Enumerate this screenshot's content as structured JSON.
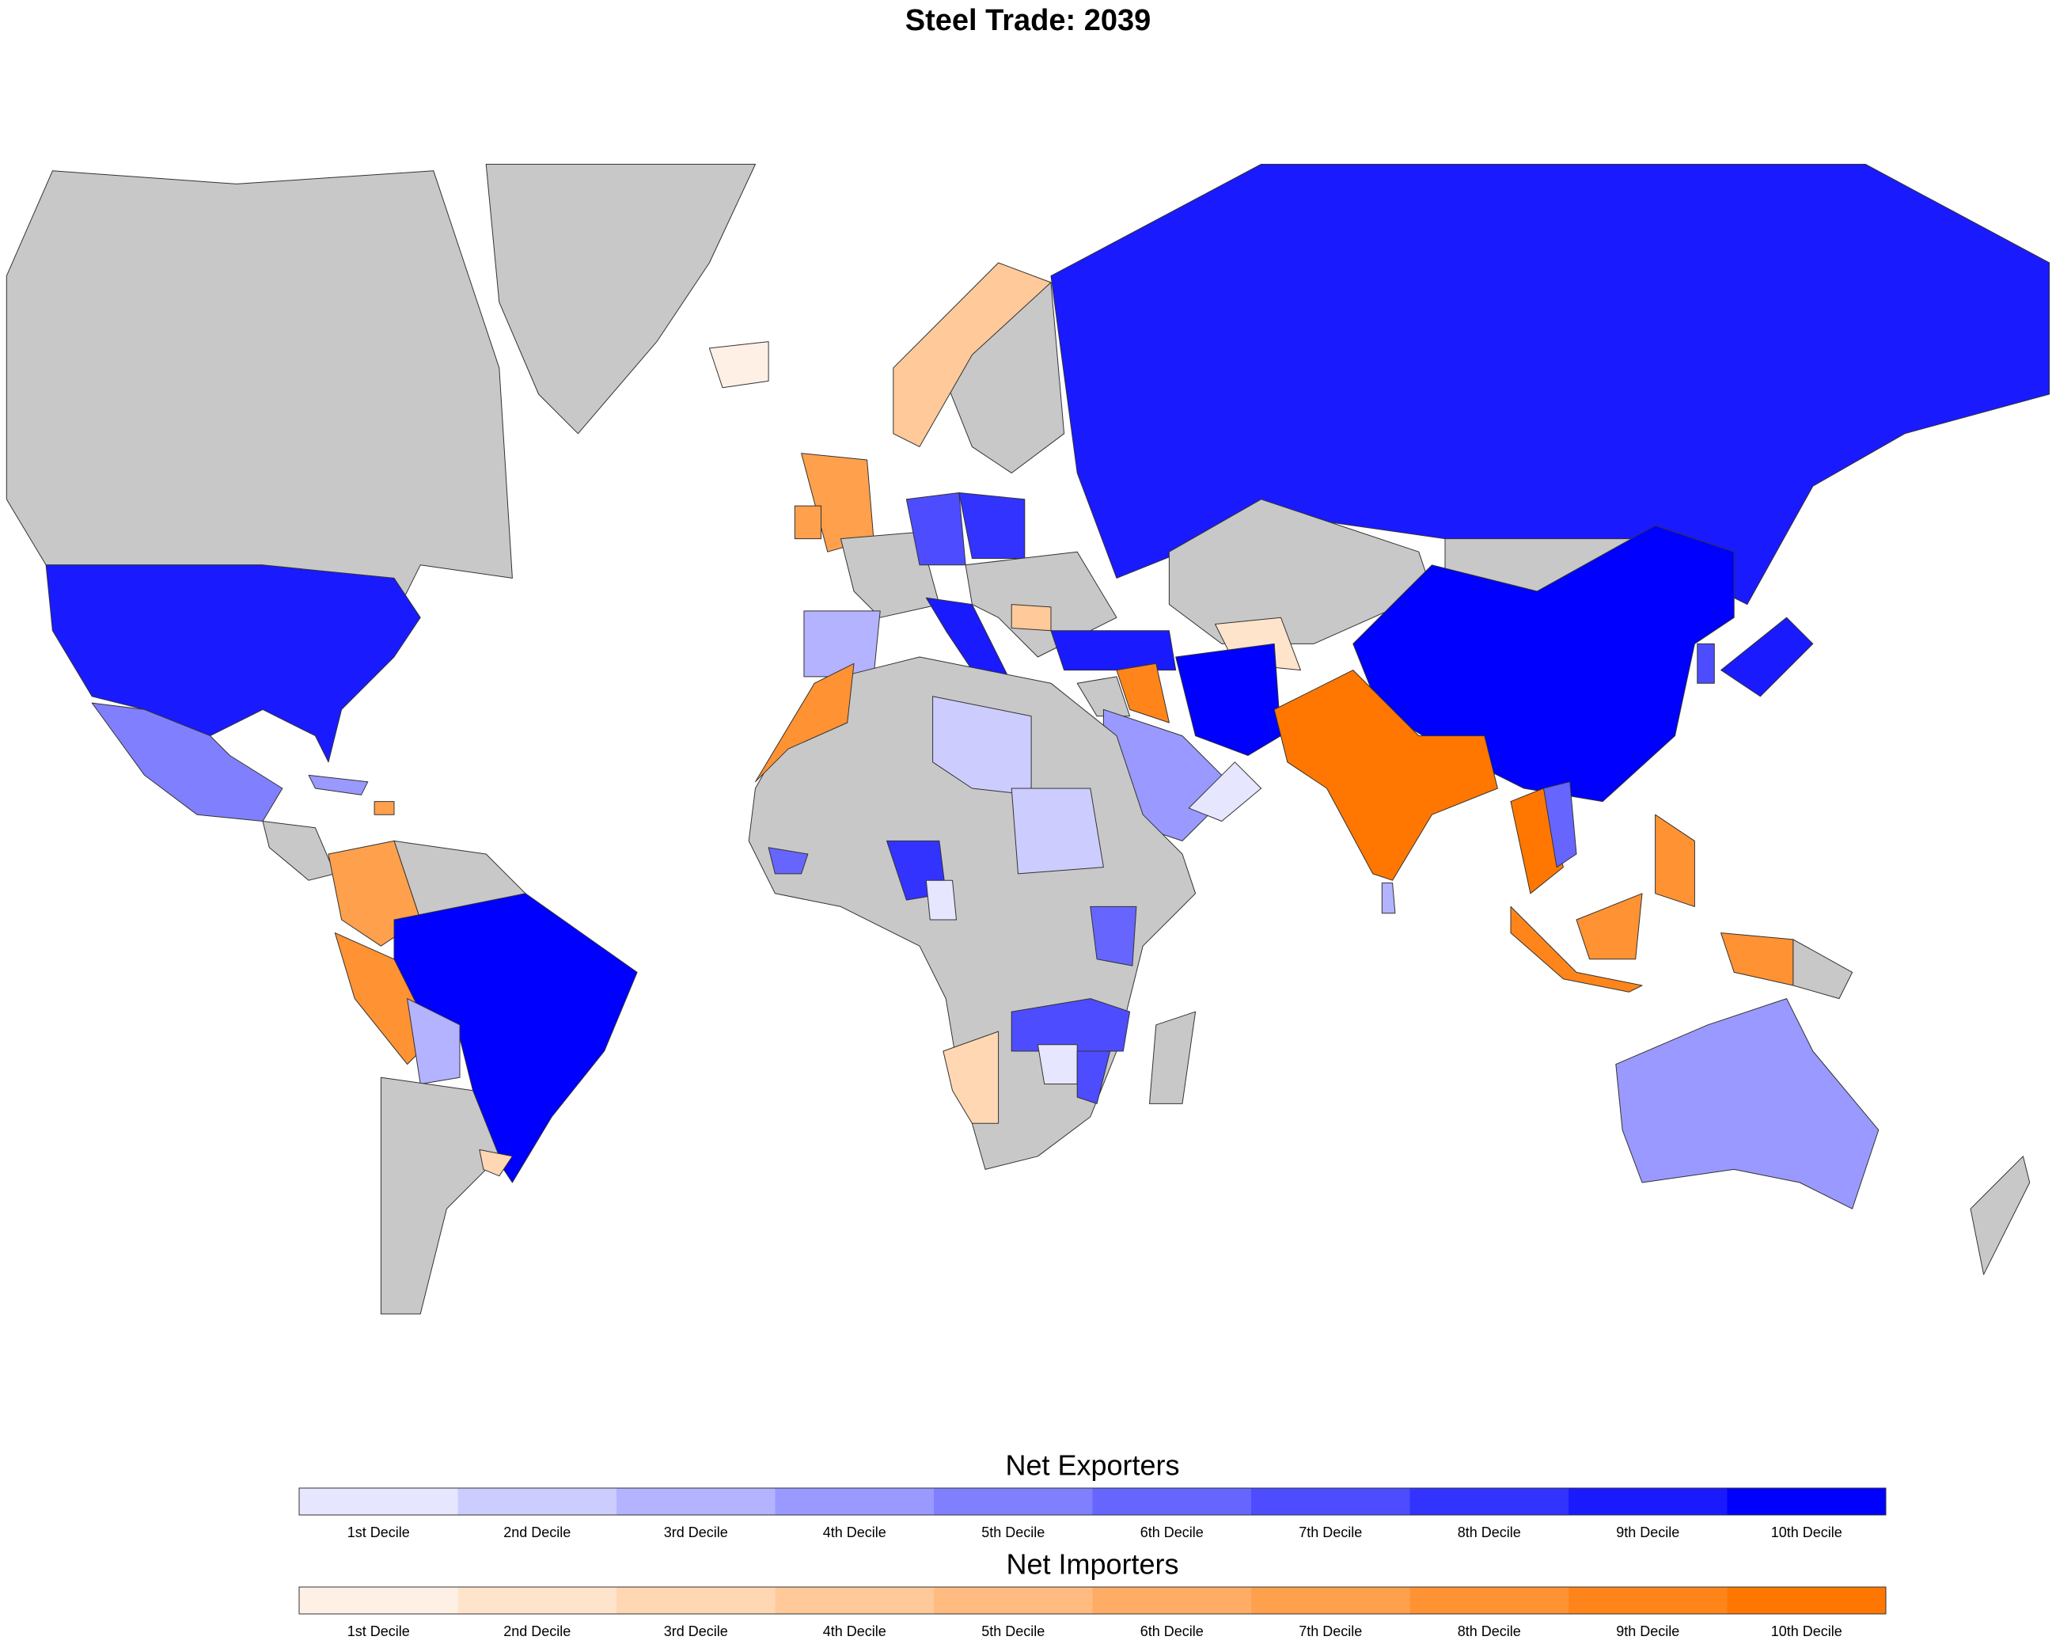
{
  "title": "Steel Trade: 2039",
  "legends": [
    {
      "title": "Net Exporters",
      "labels": [
        "1st Decile",
        "2nd Decile",
        "3rd Decile",
        "4th Decile",
        "5th Decile",
        "6th Decile",
        "7th Decile",
        "8th Decile",
        "9th Decile",
        "10th Decile"
      ],
      "colors": [
        "#e6e6ff",
        "#ccccff",
        "#b3b3ff",
        "#9999ff",
        "#8080ff",
        "#6666ff",
        "#4d4dff",
        "#3333ff",
        "#1a1aff",
        "#0000ff"
      ]
    },
    {
      "title": "Net Importers",
      "labels": [
        "1st Decile",
        "2nd Decile",
        "3rd Decile",
        "4th Decile",
        "5th Decile",
        "6th Decile",
        "7th Decile",
        "8th Decile",
        "9th Decile",
        "10th Decile"
      ],
      "colors": [
        "#fff0e6",
        "#ffe4cc",
        "#ffd7b3",
        "#ffc999",
        "#ffbb80",
        "#ffad66",
        "#ffa04d",
        "#ff9233",
        "#ff851a",
        "#ff7700"
      ]
    }
  ]
}
